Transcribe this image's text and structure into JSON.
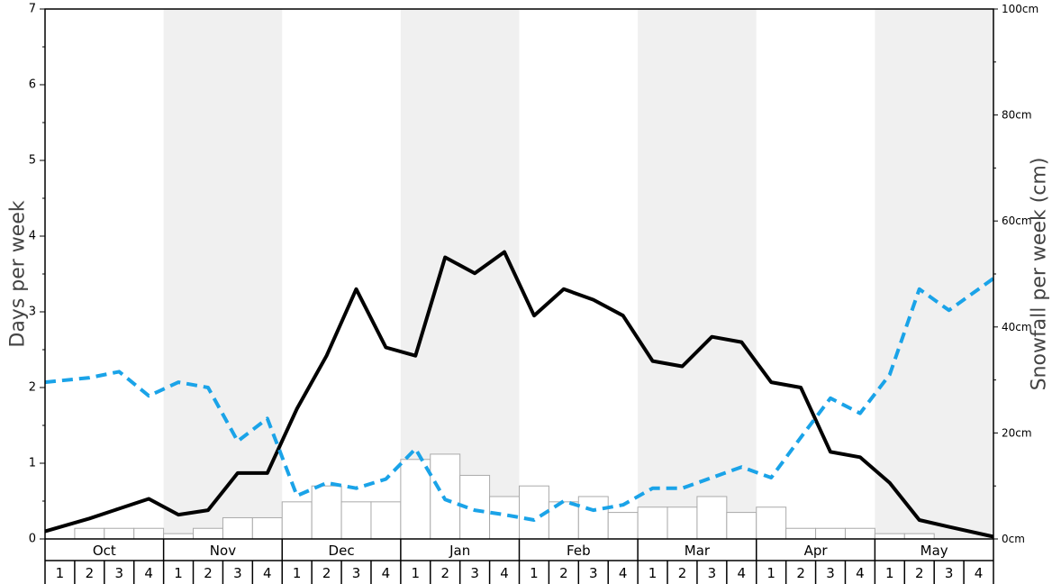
{
  "chart_data": {
    "type": "bar",
    "ylabel_left": "Days per week",
    "ylabel_right": "Snowfall per week (cm)",
    "y_left_ticks": [
      "0",
      "1",
      "2",
      "3",
      "4",
      "5",
      "6",
      "7"
    ],
    "y_left_range": [
      0,
      7
    ],
    "y_right_ticks": [
      "0cm",
      "20cm",
      "40cm",
      "60cm",
      "80cm",
      "100cm"
    ],
    "y_right_range": [
      0,
      100
    ],
    "months": [
      "Oct",
      "Nov",
      "Dec",
      "Jan",
      "Feb",
      "Mar",
      "Apr",
      "May"
    ],
    "week_labels": [
      "1",
      "2",
      "3",
      "4"
    ],
    "shaded_months": [
      "Nov",
      "Jan",
      "Mar",
      "May"
    ],
    "colors": {
      "shade": "#f0f0f0",
      "bar_fill": "#ffffff",
      "bar_stroke": "#aaaaaa",
      "days_line": "#000000",
      "dashed_line": "#1aa3e8"
    },
    "series": [
      {
        "type": "bar",
        "axis": "right",
        "values": [
          0,
          2,
          2,
          2,
          1,
          2,
          4,
          4,
          7,
          10,
          7,
          7,
          15,
          16,
          12,
          8,
          10,
          7,
          8,
          5,
          6,
          6,
          8,
          5,
          6,
          2,
          2,
          2,
          1,
          1,
          0,
          0
        ]
      },
      {
        "type": "line",
        "axis": "left",
        "values": [
          0.1,
          0.27,
          0.4,
          0.53,
          0.32,
          0.38,
          0.87,
          0.87,
          1.72,
          2.42,
          3.3,
          2.53,
          2.42,
          3.72,
          3.51,
          3.79,
          2.95,
          3.3,
          3.16,
          2.95,
          2.35,
          2.28,
          2.67,
          2.6,
          2.07,
          2.0,
          1.15,
          1.08,
          0.74,
          0.25,
          0.16,
          0.03
        ]
      },
      {
        "type": "line",
        "dashed": true,
        "axis": "left",
        "values": [
          2.07,
          2.13,
          2.21,
          1.89,
          2.07,
          2.0,
          1.29,
          1.59,
          0.57,
          0.74,
          0.67,
          0.79,
          1.19,
          0.52,
          0.38,
          0.32,
          0.25,
          0.5,
          0.38,
          0.45,
          0.67,
          0.67,
          0.81,
          0.95,
          0.81,
          1.34,
          1.86,
          1.66,
          2.17,
          3.3,
          3.02,
          3.44
        ]
      }
    ]
  }
}
